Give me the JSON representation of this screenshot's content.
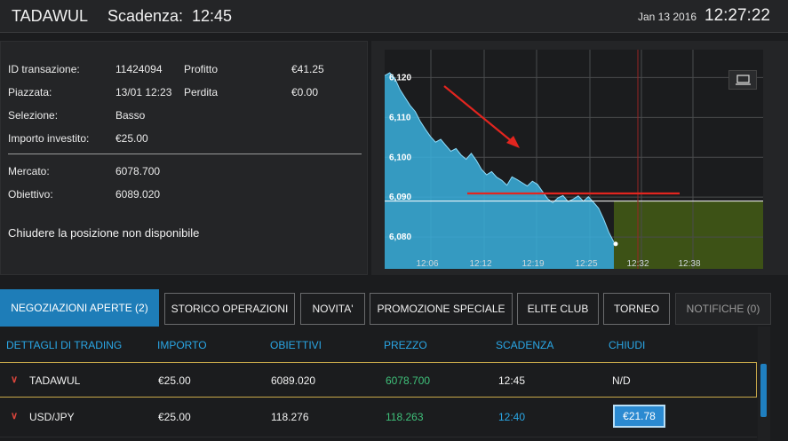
{
  "header": {
    "symbol": "TADAWUL",
    "expiry_label": "Scadenza:",
    "expiry_time": "12:45",
    "date": "Jan 13 2016",
    "time": "12:27:22"
  },
  "trade_info": {
    "transaction_id_label": "ID transazione:",
    "transaction_id": "11424094",
    "placed_label": "Piazzata:",
    "placed": "13/01 12:23",
    "selection_label": "Selezione:",
    "selection": "Basso",
    "amount_label": "Importo investito:",
    "amount": "€25.00",
    "profit_label": "Profitto",
    "profit": "€41.25",
    "loss_label": "Perdita",
    "loss": "€0.00",
    "market_label": "Mercato:",
    "market": "6078.700",
    "target_label": "Obiettivo:",
    "target": "6089.020",
    "closing_message": "Chiudere la posizione non disponibile"
  },
  "chart_data": {
    "type": "area",
    "y_ticks": [
      "6,120",
      "6,110",
      "6,100",
      "6,090",
      "6,080"
    ],
    "x_ticks": [
      "12:06",
      "12:12",
      "12:19",
      "12:25",
      "12:32",
      "12:38"
    ],
    "ylim": [
      6072,
      6127
    ],
    "target_level": 6089.02,
    "expiry_marker": "12:45",
    "colors": {
      "area": "#3ab0de",
      "future_zone": "#3d5216",
      "annotation": "#e2251f"
    },
    "series": [
      {
        "values": [
          6120.5,
          6121.2,
          6119.8,
          6117.0,
          6115.0,
          6113.0,
          6111.5,
          6109.0,
          6107.0,
          6105.2,
          6103.8,
          6104.5,
          6103.0,
          6101.5,
          6102.2,
          6100.6,
          6099.5,
          6101.0,
          6099.2,
          6097.0,
          6095.6,
          6096.4,
          6095.0,
          6094.2,
          6093.0,
          6095.1,
          6094.4,
          6093.6,
          6092.8,
          6094.0,
          6093.2,
          6091.4,
          6089.6,
          6088.6,
          6089.8,
          6090.4,
          6088.9,
          6089.5,
          6090.3,
          6089.0,
          6090.1,
          6088.7,
          6087.2,
          6084.5,
          6081.2,
          6078.7
        ]
      }
    ]
  },
  "tabs": [
    {
      "label": "NEGOZIAZIONI APERTE (2)",
      "active": true
    },
    {
      "label": "STORICO OPERAZIONI"
    },
    {
      "label": "NOVITA'"
    },
    {
      "label": "PROMOZIONE SPECIALE"
    },
    {
      "label": "ELITE CLUB"
    },
    {
      "label": "TORNEO"
    },
    {
      "label": "NOTIFICHE (0)",
      "disabled": true
    }
  ],
  "table": {
    "headers": [
      "DETTAGLI DI TRADING",
      "IMPORTO",
      "OBIETTIVI",
      "PREZZO",
      "SCADENZA",
      "CHIUDI"
    ],
    "rows": [
      {
        "asset": "TADAWUL",
        "amount": "€25.00",
        "target": "6089.020",
        "price": "6078.700",
        "expiry": "12:45",
        "close": "N/D"
      },
      {
        "asset": "USD/JPY",
        "amount": "€25.00",
        "target": "118.276",
        "price": "118.263",
        "expiry": "12:40",
        "close": "€21.78"
      }
    ]
  }
}
